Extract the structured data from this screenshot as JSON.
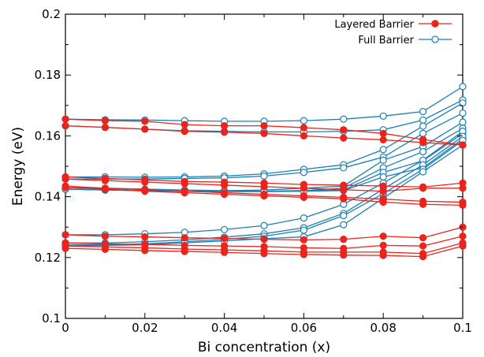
{
  "chart_data": {
    "type": "line",
    "title": "",
    "xlabel": "Bi concentration (x)",
    "ylabel": "Energy (eV)",
    "xlim": [
      0,
      0.1
    ],
    "ylim": [
      0.1,
      0.2
    ],
    "x_ticks": [
      "0",
      "0.02",
      "0.04",
      "0.06",
      "0.08",
      "0.1"
    ],
    "y_ticks": [
      "0.1",
      "0.12",
      "0.14",
      "0.16",
      "0.18",
      "0.2"
    ],
    "grid": false,
    "legend_position": "top-right",
    "x": [
      0,
      0.01,
      0.02,
      0.03,
      0.04,
      0.05,
      0.06,
      0.07,
      0.08,
      0.09,
      0.1
    ],
    "legend": [
      {
        "label": "Layered Barrier",
        "color": "#e8241c",
        "marker": "filled-circle"
      },
      {
        "label": "Full Barrier",
        "color": "#1a7fb5",
        "marker": "open-circle"
      }
    ],
    "series": [
      {
        "group": "layered",
        "values": [
          0.1655,
          0.165,
          0.1648,
          0.1637,
          0.1633,
          0.1633,
          0.1627,
          0.162,
          0.1608,
          0.1588,
          0.157
        ]
      },
      {
        "group": "layered",
        "values": [
          0.1633,
          0.1628,
          0.1622,
          0.1615,
          0.1612,
          0.1608,
          0.16,
          0.1593,
          0.1587,
          0.1578,
          0.157
        ]
      },
      {
        "group": "layered",
        "values": [
          0.1465,
          0.146,
          0.1455,
          0.145,
          0.1448,
          0.1445,
          0.144,
          0.1438,
          0.1435,
          0.1432,
          0.1445
        ]
      },
      {
        "group": "layered",
        "values": [
          0.1458,
          0.1453,
          0.1448,
          0.1443,
          0.1438,
          0.1433,
          0.1428,
          0.1423,
          0.1418,
          0.1428,
          0.1428
        ]
      },
      {
        "group": "layered",
        "values": [
          0.1435,
          0.1428,
          0.1423,
          0.1418,
          0.1413,
          0.1408,
          0.1403,
          0.1398,
          0.1392,
          0.1385,
          0.1382
        ]
      },
      {
        "group": "layered",
        "values": [
          0.143,
          0.1425,
          0.1418,
          0.1413,
          0.1408,
          0.1403,
          0.1398,
          0.1393,
          0.1382,
          0.1375,
          0.1372
        ]
      },
      {
        "group": "layered",
        "values": [
          0.1275,
          0.127,
          0.1268,
          0.1265,
          0.1263,
          0.126,
          0.1258,
          0.126,
          0.127,
          0.1265,
          0.13
        ]
      },
      {
        "group": "layered",
        "values": [
          0.1248,
          0.1245,
          0.1243,
          0.124,
          0.1238,
          0.1236,
          0.1232,
          0.123,
          0.124,
          0.1238,
          0.127
        ]
      },
      {
        "group": "layered",
        "values": [
          0.1238,
          0.1235,
          0.1232,
          0.1228,
          0.1225,
          0.1222,
          0.1218,
          0.1218,
          0.1218,
          0.1213,
          0.1248
        ]
      },
      {
        "group": "layered",
        "values": [
          0.123,
          0.1227,
          0.1223,
          0.122,
          0.1217,
          0.1213,
          0.121,
          0.1208,
          0.1207,
          0.1203,
          0.1238
        ]
      },
      {
        "group": "full",
        "values": [
          0.1655,
          0.1653,
          0.1652,
          0.165,
          0.1648,
          0.1648,
          0.165,
          0.1655,
          0.1665,
          0.168,
          0.1762
        ]
      },
      {
        "group": "full",
        "values": [
          0.1633,
          0.1628,
          0.1622,
          0.1617,
          0.1615,
          0.1613,
          0.1613,
          0.1615,
          0.162,
          0.1652,
          0.1718
        ]
      },
      {
        "group": "full",
        "values": [
          0.1465,
          0.1465,
          0.1464,
          0.1465,
          0.1468,
          0.1475,
          0.149,
          0.1505,
          0.1555,
          0.1632,
          0.1708
        ]
      },
      {
        "group": "full",
        "values": [
          0.1458,
          0.1458,
          0.1458,
          0.146,
          0.1462,
          0.1468,
          0.148,
          0.1495,
          0.153,
          0.1608,
          0.1675
        ]
      },
      {
        "group": "full",
        "values": [
          0.143,
          0.1428,
          0.1425,
          0.1422,
          0.142,
          0.1422,
          0.1428,
          0.1435,
          0.152,
          0.1565,
          0.1645
        ]
      },
      {
        "group": "full",
        "values": [
          0.1425,
          0.1422,
          0.142,
          0.1418,
          0.1418,
          0.1418,
          0.142,
          0.1428,
          0.1495,
          0.1548,
          0.1625
        ]
      },
      {
        "group": "full",
        "values": [
          0.1425,
          0.1422,
          0.142,
          0.1418,
          0.1418,
          0.1418,
          0.142,
          0.1422,
          0.148,
          0.1518,
          0.1608
        ]
      },
      {
        "group": "full",
        "values": [
          0.1425,
          0.1422,
          0.142,
          0.1418,
          0.1417,
          0.1417,
          0.1418,
          0.142,
          0.1465,
          0.1495,
          0.159
        ]
      },
      {
        "group": "full",
        "values": [
          0.1275,
          0.1275,
          0.1278,
          0.1283,
          0.1292,
          0.1305,
          0.133,
          0.1375,
          0.1445,
          0.152,
          0.1615
        ]
      },
      {
        "group": "full",
        "values": [
          0.1248,
          0.1248,
          0.1252,
          0.1258,
          0.1267,
          0.1278,
          0.1298,
          0.1345,
          0.1425,
          0.1505,
          0.1598
        ]
      },
      {
        "group": "full",
        "values": [
          0.1242,
          0.1242,
          0.1245,
          0.1252,
          0.126,
          0.127,
          0.129,
          0.1338,
          0.141,
          0.149,
          0.1585
        ]
      },
      {
        "group": "full",
        "values": [
          0.1238,
          0.124,
          0.1242,
          0.1248,
          0.1255,
          0.1262,
          0.1268,
          0.1308,
          0.1395,
          0.1482,
          0.157
        ]
      }
    ]
  }
}
